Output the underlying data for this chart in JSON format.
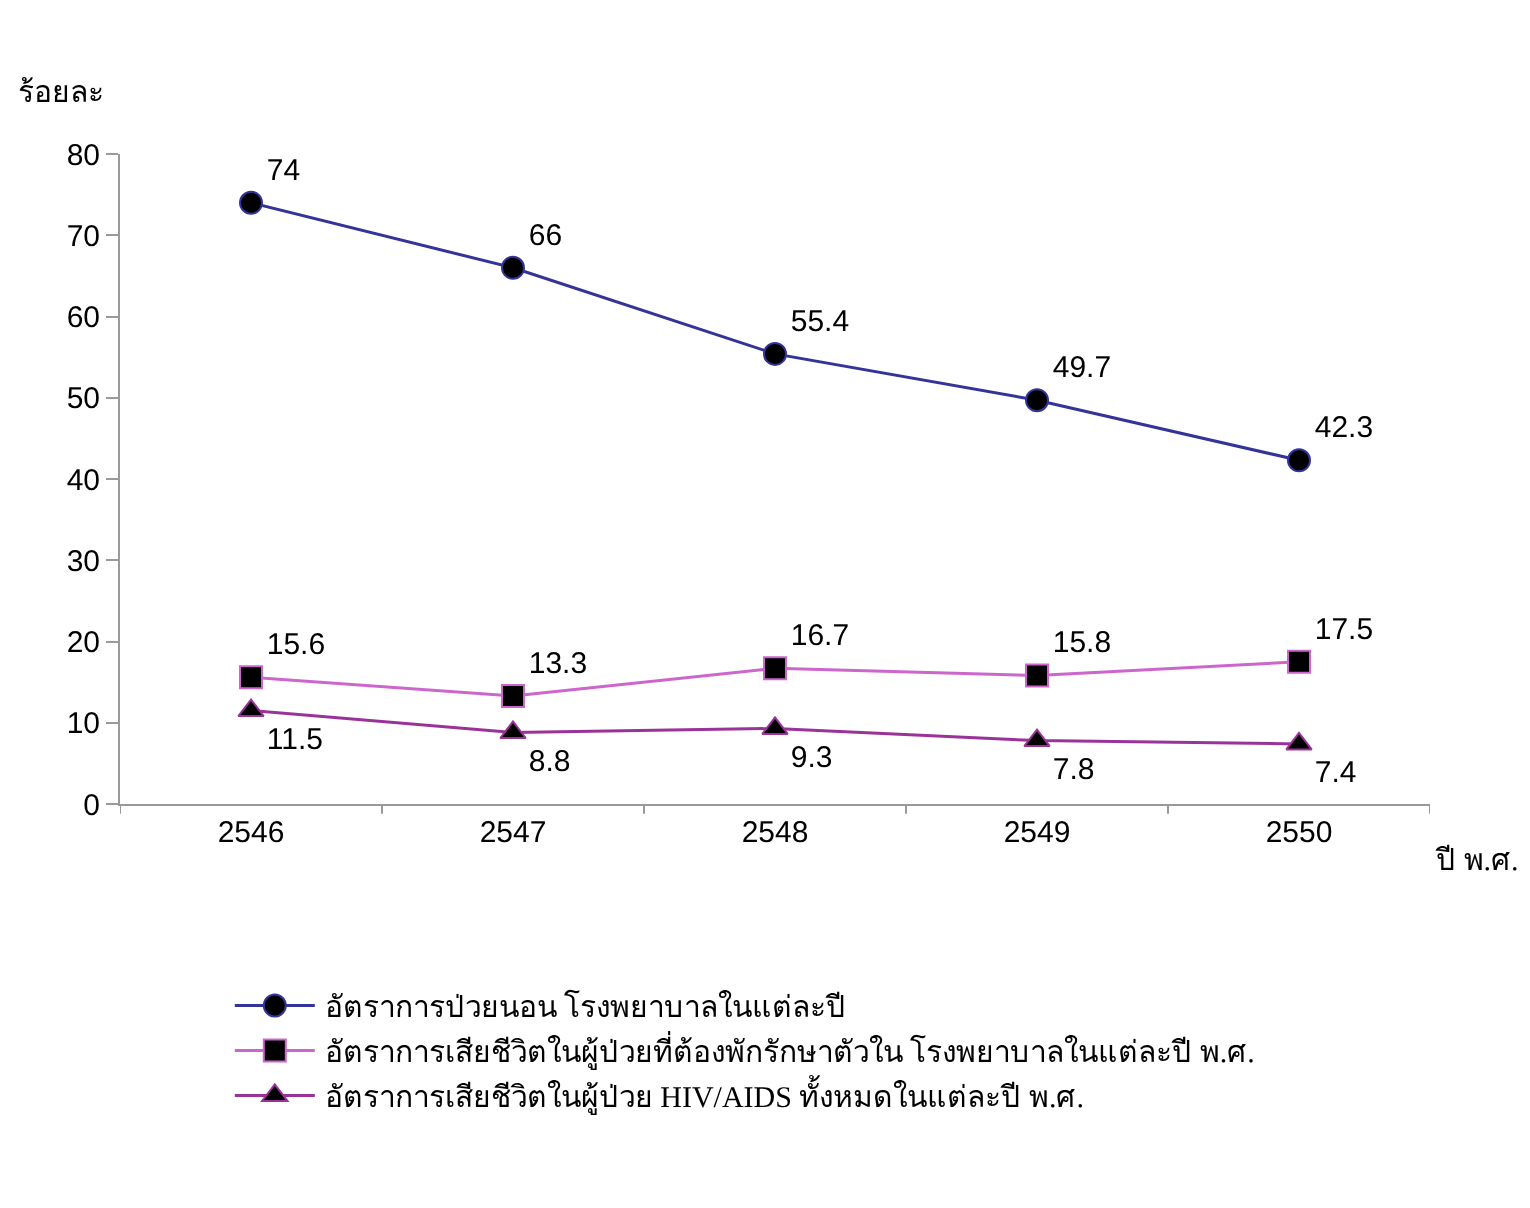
{
  "chart_data": {
    "type": "line",
    "ylabel": "ร้อยละ",
    "xlabel": "ปี พ.ศ.",
    "categories": [
      "2546",
      "2547",
      "2548",
      "2549",
      "2550"
    ],
    "series": [
      {
        "name": "อัตราการป่วยนอน โรงพยาบาลในแต่ละปี",
        "color": "#333399",
        "marker": "circle",
        "values": [
          74,
          66,
          55.4,
          49.7,
          42.3
        ]
      },
      {
        "name": "อัตราการเสียชีวิตในผู้ป่วยที่ต้องพักรักษาตัวใน โรงพยาบาลในแต่ละปี พ.ศ.",
        "color": "#cc66cc",
        "marker": "square",
        "values": [
          15.6,
          13.3,
          16.7,
          15.8,
          17.5
        ]
      },
      {
        "name": "อัตราการเสียชีวิตในผู้ป่วย HIV/AIDS ทั้งหมดในแต่ละปี พ.ศ.",
        "color": "#993399",
        "marker": "triangle",
        "values": [
          11.5,
          8.8,
          9.3,
          7.8,
          7.4
        ]
      }
    ],
    "ylim": [
      0,
      80
    ],
    "yticks": [
      0,
      10,
      20,
      30,
      40,
      50,
      60,
      70,
      80
    ],
    "legend": "bottom",
    "data_labels": true,
    "line_style": "solid"
  }
}
